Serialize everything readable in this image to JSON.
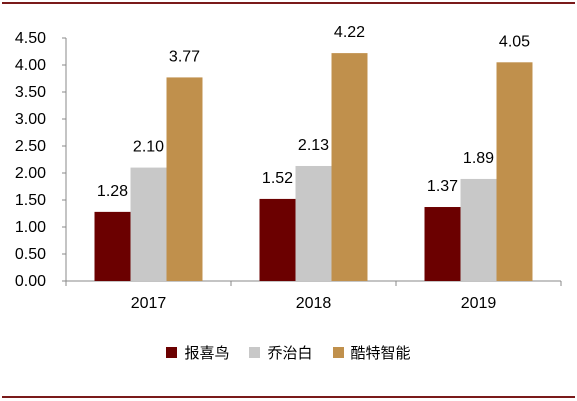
{
  "chart_data": {
    "type": "bar",
    "title": "",
    "xlabel": "",
    "ylabel": "",
    "categories": [
      "2017",
      "2018",
      "2019"
    ],
    "series": [
      {
        "name": "报喜鸟",
        "color": "#6b0000",
        "values": [
          1.28,
          1.52,
          1.37
        ],
        "labels": [
          "1.28",
          "1.52",
          "1.37"
        ]
      },
      {
        "name": "乔治白",
        "color": "#c8c8c8",
        "values": [
          2.1,
          2.13,
          1.89
        ],
        "labels": [
          "2.10",
          "2.13",
          "1.89"
        ]
      },
      {
        "name": "酷特智能",
        "color": "#c0904c",
        "values": [
          3.77,
          4.22,
          4.05
        ],
        "labels": [
          "3.77",
          "4.22",
          "4.05"
        ]
      }
    ],
    "ylim": [
      0,
      4.5
    ],
    "yticks": [
      "0.00",
      "0.50",
      "1.00",
      "1.50",
      "2.00",
      "2.50",
      "3.00",
      "3.50",
      "4.00",
      "4.50"
    ],
    "grid": false,
    "legend_position": "bottom"
  }
}
